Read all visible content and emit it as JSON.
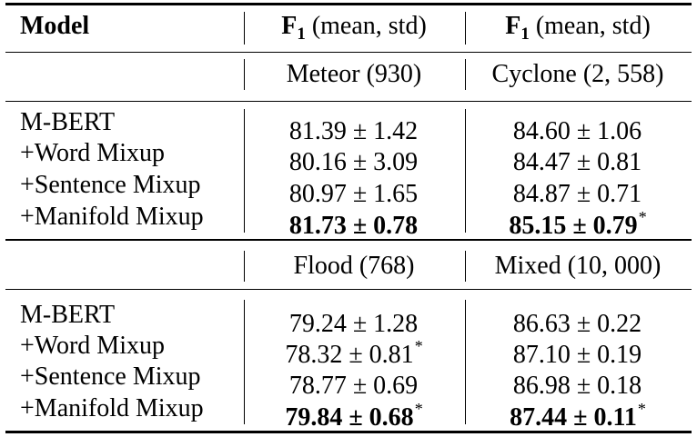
{
  "header": {
    "model": "Model",
    "col1_base": "F",
    "col1_sub": "1",
    "col1_rest": " (mean, std)",
    "col2_base": "F",
    "col2_sub": "1",
    "col2_rest": " (mean, std)"
  },
  "sections": [
    {
      "datasets": [
        "Meteor (930)",
        "Cyclone (2, 558)"
      ],
      "rows": [
        {
          "model": "M-BERT",
          "c1": "81.39 ± 1.42",
          "c1_star": "",
          "c2": "84.60 ± 1.06",
          "c2_star": ""
        },
        {
          "model": "+Word Mixup",
          "c1": "80.16 ± 3.09",
          "c1_star": "",
          "c2": "84.47 ± 0.81",
          "c2_star": ""
        },
        {
          "model": "+Sentence Mixup",
          "c1": "80.97 ± 1.65",
          "c1_star": "",
          "c2": "84.87 ± 0.71",
          "c2_star": ""
        },
        {
          "model": "+Manifold Mixup",
          "c1": "81.73 ± 0.78",
          "c1_star": "",
          "c2": "85.15 ± 0.79",
          "c2_star": "*"
        }
      ]
    },
    {
      "datasets": [
        "Flood (768)",
        "Mixed (10, 000)"
      ],
      "rows": [
        {
          "model": "M-BERT",
          "c1": "79.24 ± 1.28",
          "c1_star": "",
          "c2": "86.63 ± 0.22",
          "c2_star": ""
        },
        {
          "model": "+Word Mixup",
          "c1": "78.32 ± 0.81",
          "c1_star": "*",
          "c2": "87.10 ± 0.19",
          "c2_star": ""
        },
        {
          "model": "+Sentence Mixup",
          "c1": "78.77 ± 0.69",
          "c1_star": "",
          "c2": "86.98 ± 0.18",
          "c2_star": ""
        },
        {
          "model": "+Manifold Mixup",
          "c1": "79.84 ± 0.68",
          "c1_star": "*",
          "c2": "87.44 ± 0.11",
          "c2_star": "*"
        }
      ]
    }
  ]
}
